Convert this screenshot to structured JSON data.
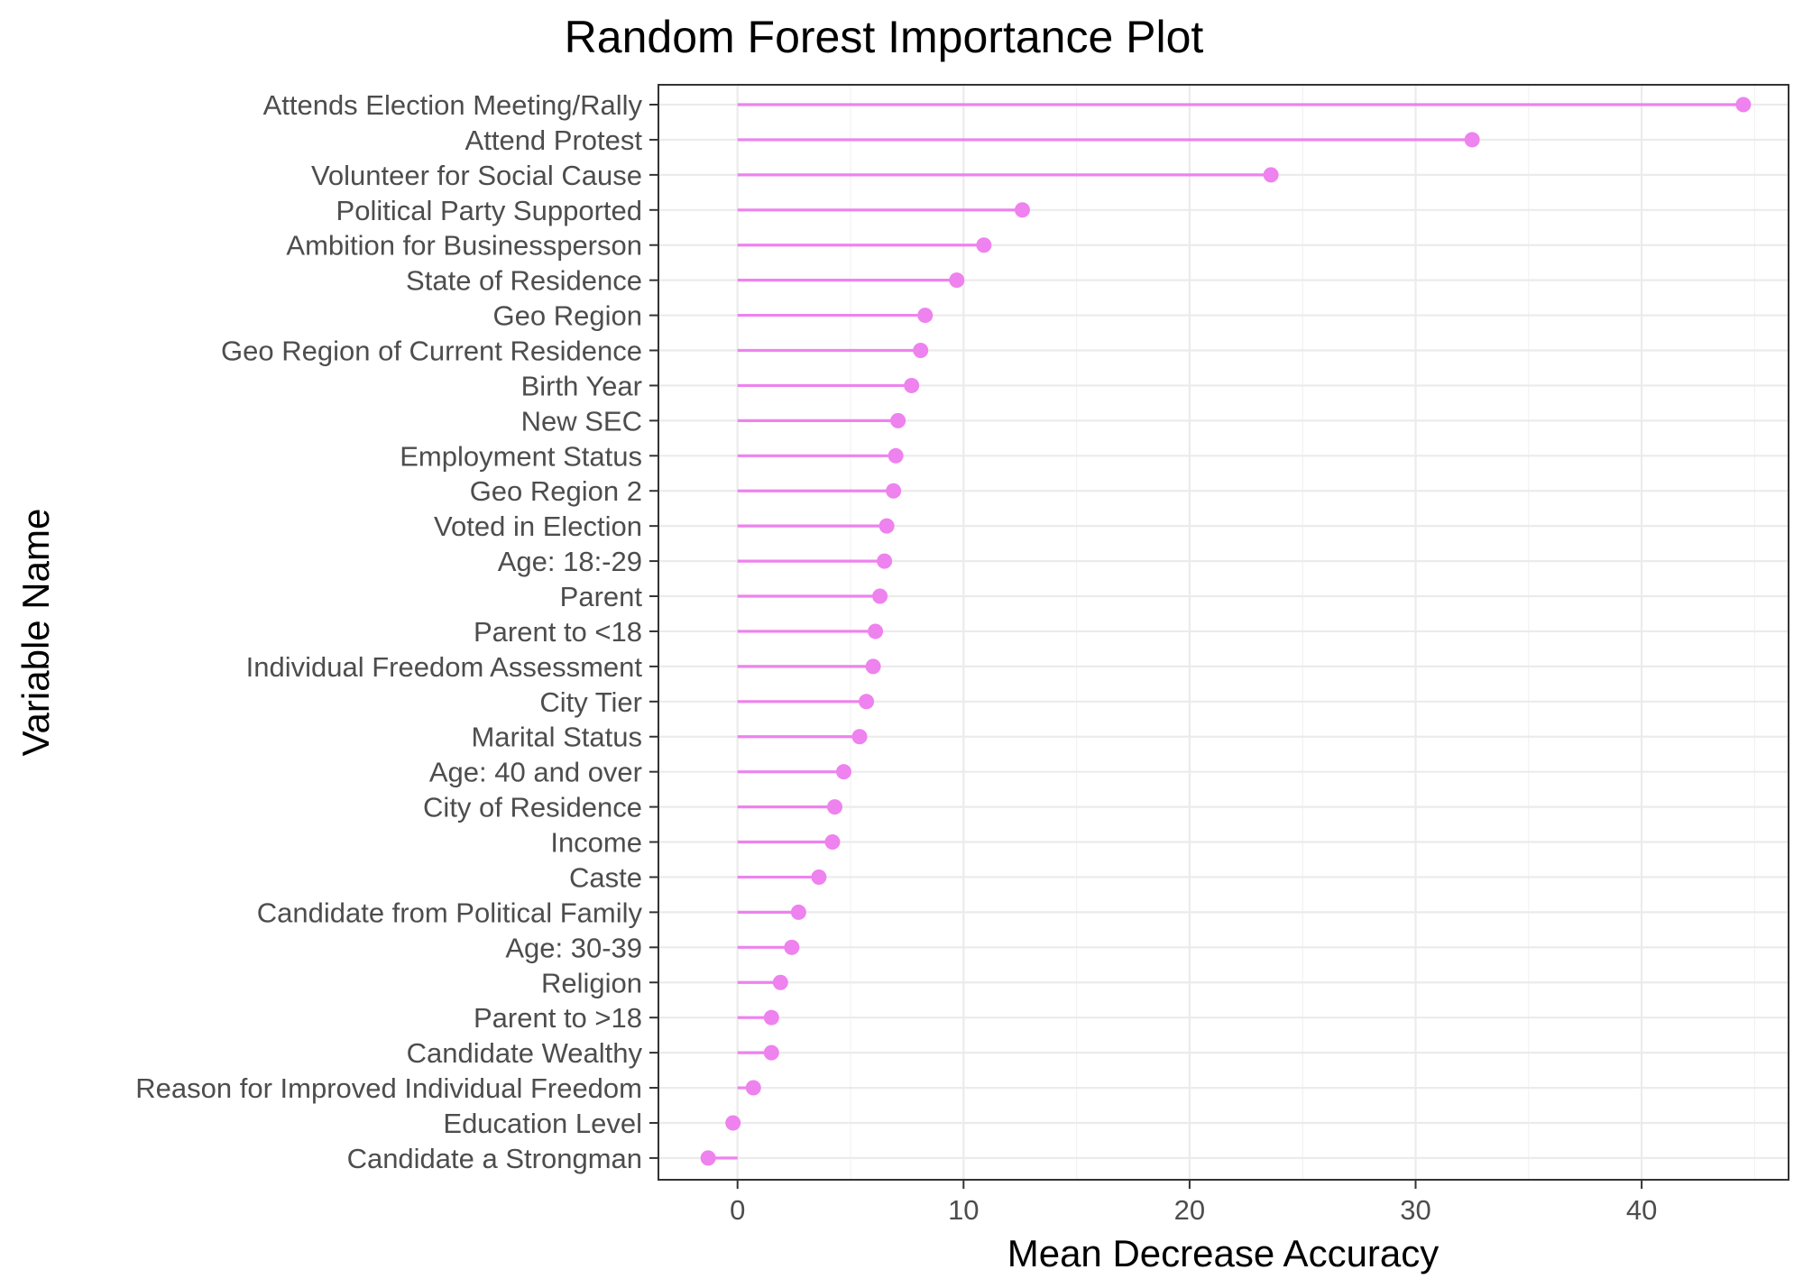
{
  "chart_data": {
    "type": "lollipop",
    "title": "Random Forest Importance Plot",
    "xlabel": "Mean Decrease Accuracy",
    "ylabel": "Variable Name",
    "xlim": [
      -3.5,
      46.5
    ],
    "xticks": [
      0,
      10,
      20,
      30,
      40
    ],
    "grid": true,
    "color": "#EE82EE",
    "categories": [
      "Attends Election Meeting/Rally",
      "Attend Protest",
      "Volunteer for Social Cause",
      "Political Party Supported",
      "Ambition for Businessperson",
      "State of Residence",
      "Geo Region",
      "Geo Region of Current Residence",
      "Birth Year",
      "New SEC",
      "Employment Status",
      "Geo Region 2",
      "Voted in Election",
      "Age: 18:-29",
      "Parent",
      "Parent to <18",
      "Individual Freedom Assessment",
      "City Tier",
      "Marital Status",
      "Age: 40 and over",
      "City of Residence",
      "Income",
      "Caste",
      "Candidate from Political Family",
      "Age: 30-39",
      "Religion",
      "Parent to >18",
      "Candidate Wealthy",
      "Reason for Improved Individual Freedom",
      "Education Level",
      "Candidate a Strongman"
    ],
    "values": [
      44.5,
      32.5,
      23.6,
      12.6,
      10.9,
      9.7,
      8.3,
      8.1,
      7.7,
      7.1,
      7.0,
      6.9,
      6.6,
      6.5,
      6.3,
      6.1,
      6.0,
      5.7,
      5.4,
      4.7,
      4.3,
      4.2,
      3.6,
      2.7,
      2.4,
      1.9,
      1.5,
      1.5,
      0.7,
      -0.2,
      -1.3
    ]
  }
}
